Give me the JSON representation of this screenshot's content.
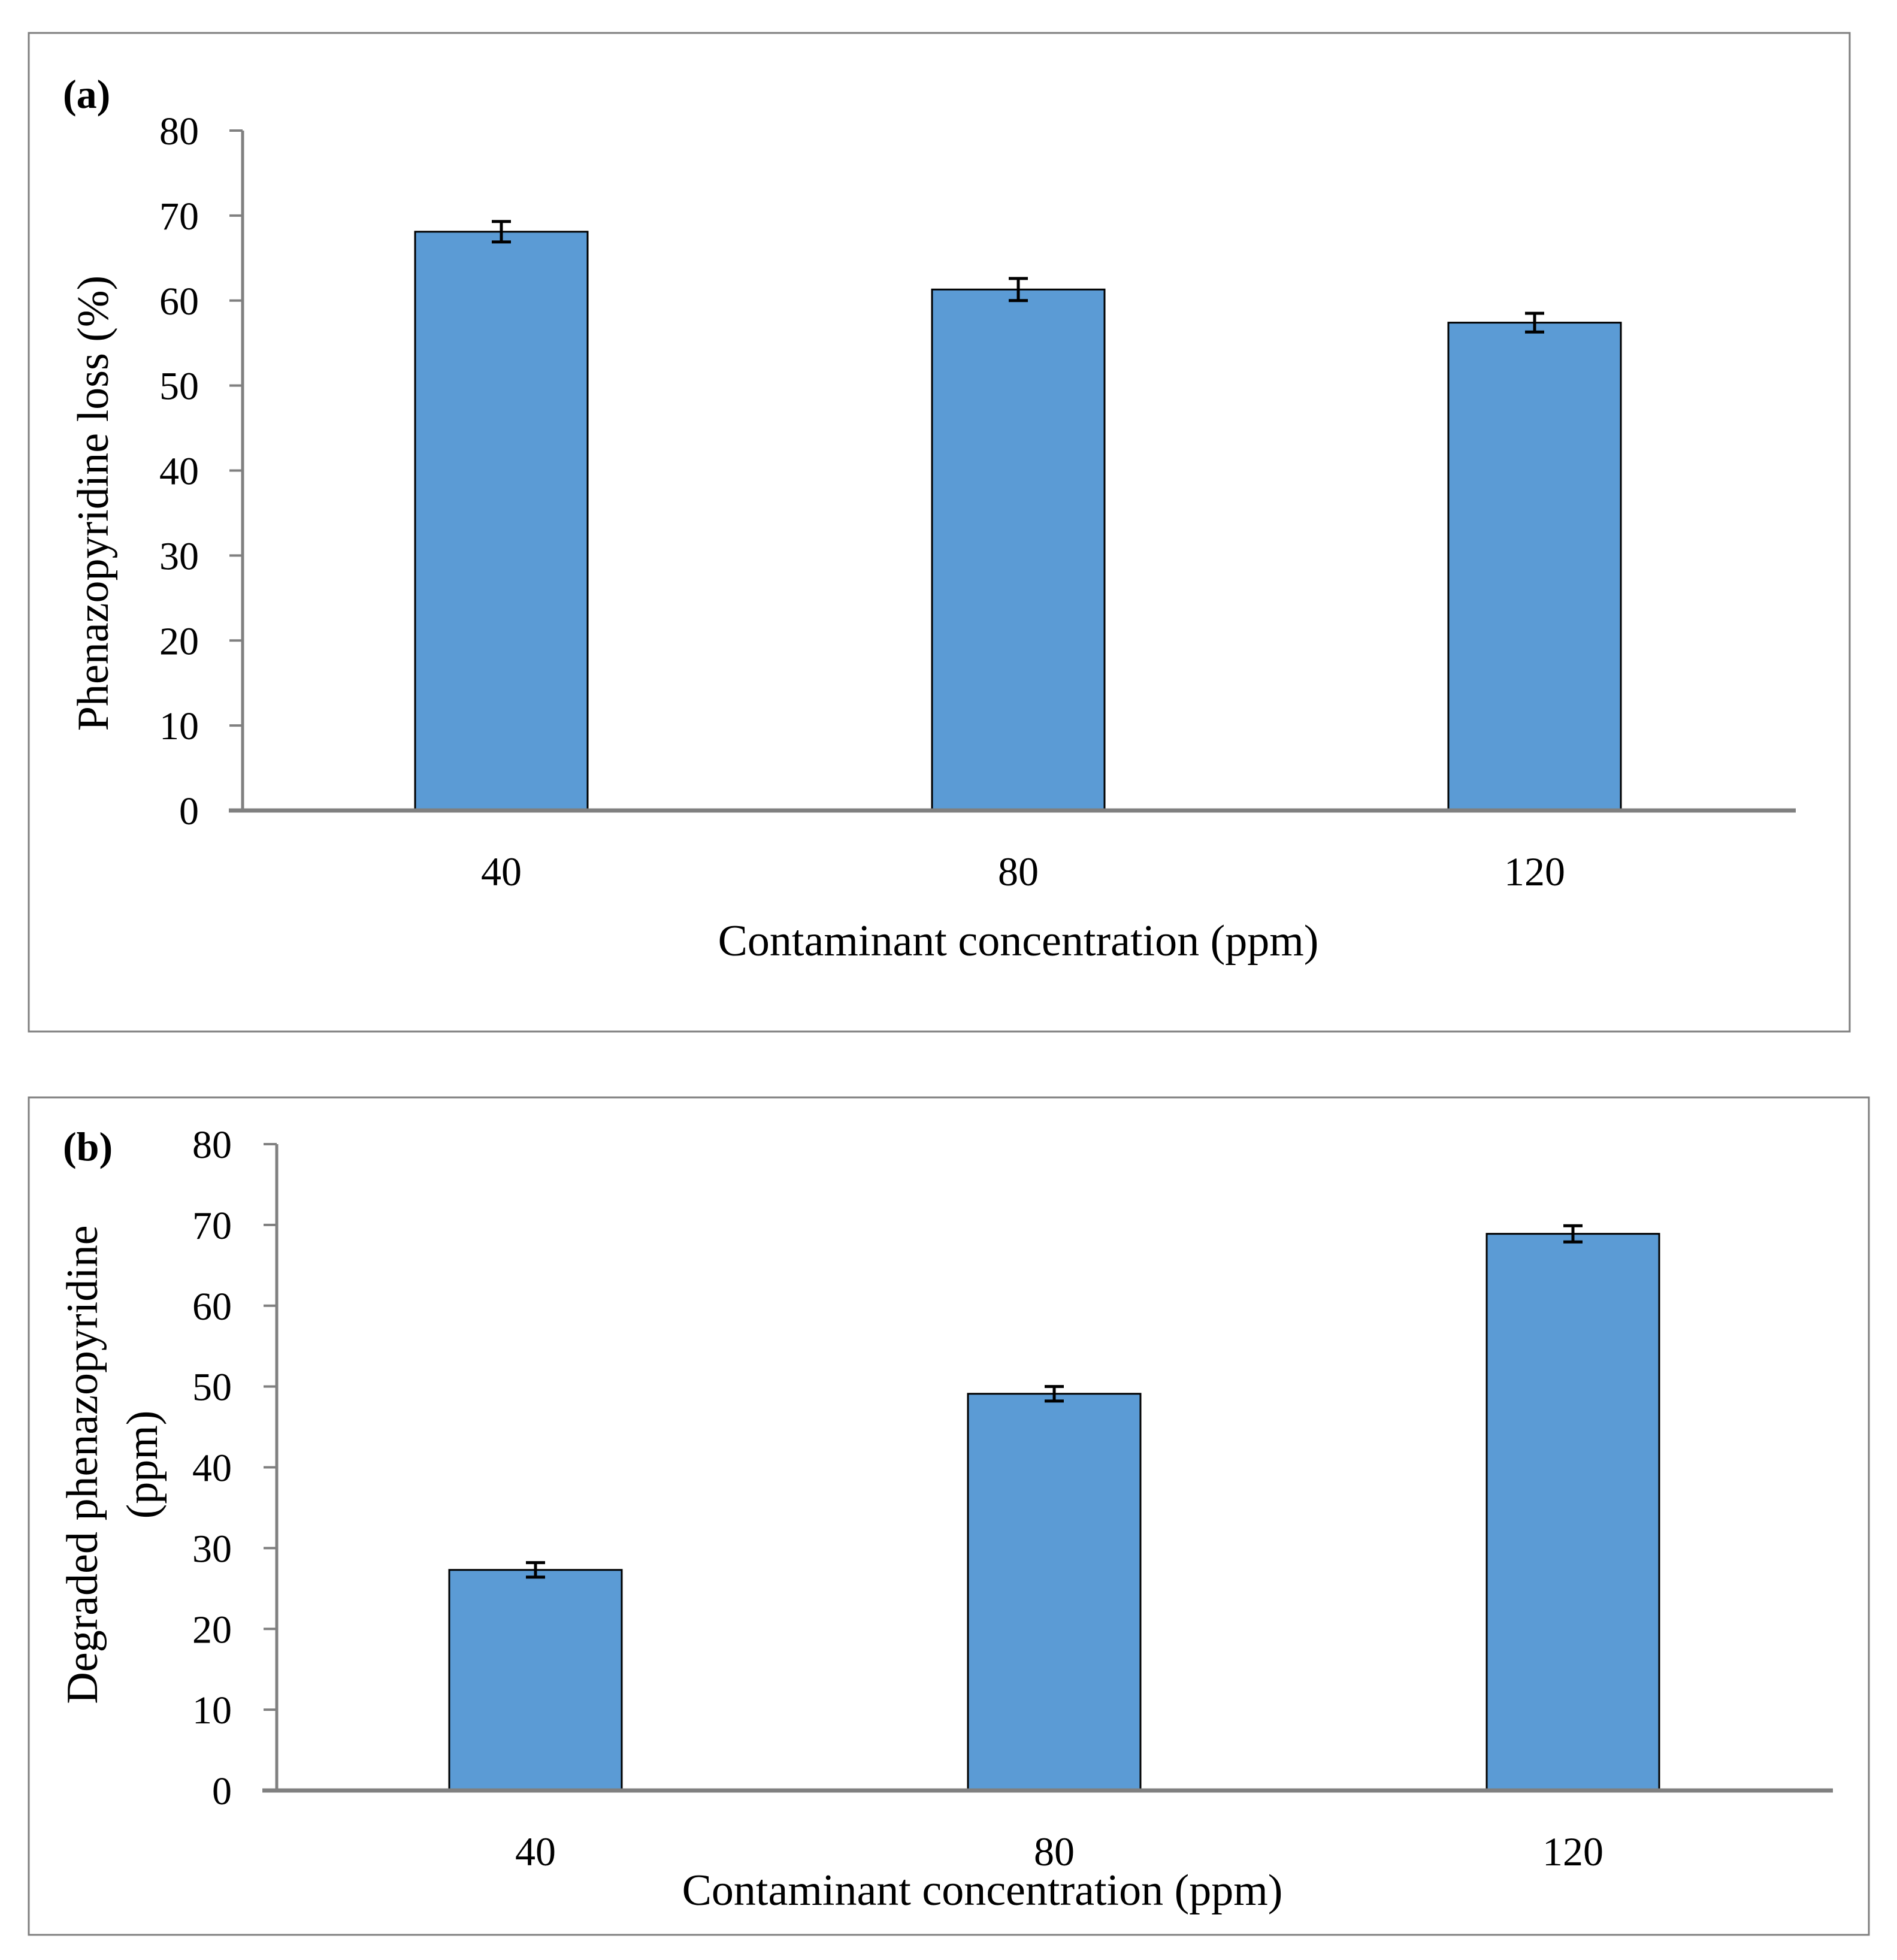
{
  "chart_data": [
    {
      "type": "bar",
      "panel_label": "(a)",
      "categories": [
        "40",
        "80",
        "120"
      ],
      "values": [
        68.1,
        61.3,
        57.4
      ],
      "errors": [
        1.2,
        1.3,
        1.1
      ],
      "xlabel": "Contaminant concentration (ppm)",
      "ylabel": "Phenazopyridine loss (%)",
      "ylim": [
        0,
        80
      ],
      "yticks": [
        "0",
        "10",
        "20",
        "30",
        "40",
        "50",
        "60",
        "70",
        "80"
      ],
      "grid": false,
      "bar_color": "#5b9bd5"
    },
    {
      "type": "bar",
      "panel_label": "(b)",
      "categories": [
        "40",
        "80",
        "120"
      ],
      "values": [
        27.3,
        49.1,
        68.9
      ],
      "errors": [
        0.9,
        0.9,
        1.0
      ],
      "xlabel": "Contaminant concentration (ppm)",
      "ylabel_lines": [
        "Degraded phenazopyridine",
        "(ppm)"
      ],
      "ylim": [
        0,
        80
      ],
      "yticks": [
        "0",
        "10",
        "20",
        "30",
        "40",
        "50",
        "60",
        "70",
        "80"
      ],
      "grid": false,
      "bar_color": "#5b9bd5"
    }
  ]
}
